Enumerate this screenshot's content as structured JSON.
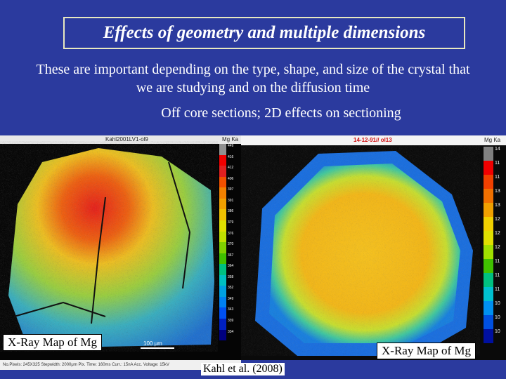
{
  "title": "Effects of geometry and multiple dimensions",
  "subtitle": "These are important depending on the type, shape, and size of the crystal that we are studying and on the diffusion time",
  "subnote": "Off core sections; 2D effects on sectioning",
  "left_map": {
    "header_title": "Kahl2001LV1-ol9",
    "header_label": "Mg Ka",
    "legend_values": [
      "449",
      "416",
      "412",
      "406",
      "397",
      "391",
      "386",
      "379",
      "376",
      "370",
      "367",
      "364",
      "358",
      "352",
      "349",
      "343",
      "339",
      "334"
    ],
    "caption": "X-Ray Map of Mg",
    "scale_label": "100 μm",
    "footer": "No.Pixels: 245X325  Stepwidth: 2000μm  Pix. Time: 160ms  Curr.: 15nA  Acc. Voltage: 15kV"
  },
  "right_map": {
    "header_title": "14-12-91// ol13",
    "header_label": "Mg Ka",
    "legend_values": [
      "14",
      "11",
      "11",
      "13",
      "13",
      "12",
      "12",
      "12",
      "11",
      "11",
      "11",
      "10",
      "10",
      "10"
    ],
    "caption": "X-Ray Map of Mg"
  },
  "credit": "Kahl et al. (2008)",
  "colors": {
    "background": "#2b3a9e",
    "title_border": "#e8e8c0"
  }
}
